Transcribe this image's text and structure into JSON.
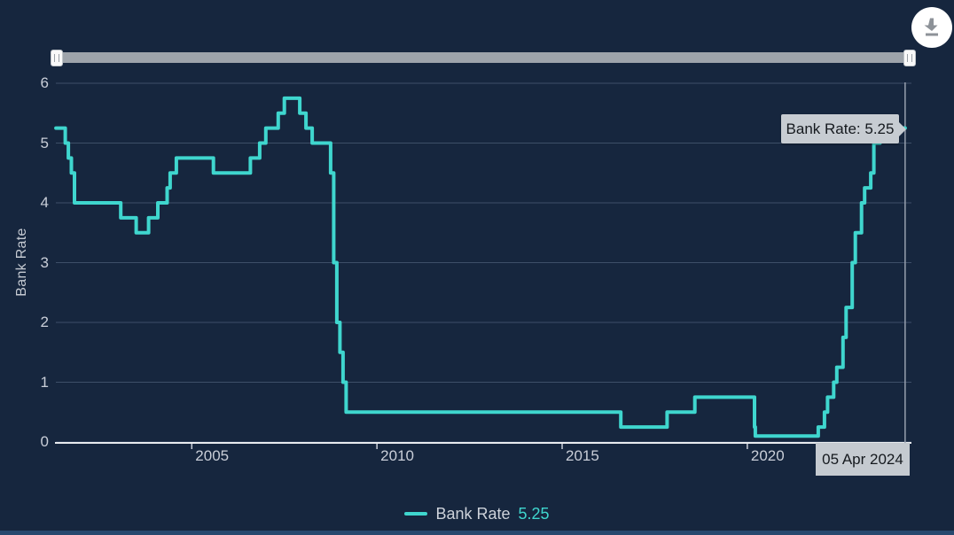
{
  "header": {
    "download_icon": "download-icon"
  },
  "colors": {
    "background": "#16263E",
    "accent_teal": "#3FD6CE",
    "grid": "#3E4F68",
    "axis_line": "#E8EBEF",
    "axis_text": "#C9CED8",
    "crosshair": "#97A0AE",
    "tooltip_bg": "#C7CCD2",
    "tooltip_text": "#15191E",
    "slider_track": "#9EA4AB",
    "slider_handle": "#F9F9F9"
  },
  "tooltip": {
    "label": "Bank Rate: 5.25"
  },
  "cursor": {
    "date_label": "05 Apr 2024"
  },
  "legend": {
    "name": "Bank Rate",
    "value": "5.25"
  },
  "chart_data": {
    "type": "line",
    "step": true,
    "title": "",
    "xlabel": "",
    "ylabel": "Bank Rate",
    "ylim": [
      0,
      6
    ],
    "y_ticks": [
      0,
      1,
      2,
      3,
      4,
      5,
      6
    ],
    "x_ticks": [
      2005,
      2010,
      2015,
      2020
    ],
    "x_range_decimal_years": [
      2001.33,
      2024.36
    ],
    "grid": "horizontal-only",
    "legend_position": "bottom-center",
    "cursor_date": "2024-04-05",
    "cursor_value": 5.25,
    "series": [
      {
        "name": "Bank Rate",
        "color": "#3FD6CE",
        "current_value": "5.25",
        "points": [
          [
            "2001-05",
            5.25
          ],
          [
            "2001-08",
            5.0
          ],
          [
            "2001-09",
            4.75
          ],
          [
            "2001-10",
            4.5
          ],
          [
            "2001-11",
            4.0
          ],
          [
            "2003-02",
            3.75
          ],
          [
            "2003-07",
            3.5
          ],
          [
            "2003-11",
            3.75
          ],
          [
            "2004-02",
            4.0
          ],
          [
            "2004-05",
            4.25
          ],
          [
            "2004-06",
            4.5
          ],
          [
            "2004-08",
            4.75
          ],
          [
            "2005-08",
            4.5
          ],
          [
            "2006-08",
            4.75
          ],
          [
            "2006-11",
            5.0
          ],
          [
            "2007-01",
            5.25
          ],
          [
            "2007-05",
            5.5
          ],
          [
            "2007-07",
            5.75
          ],
          [
            "2007-12",
            5.5
          ],
          [
            "2008-02",
            5.25
          ],
          [
            "2008-04",
            5.0
          ],
          [
            "2008-10",
            4.5
          ],
          [
            "2008-11",
            3.0
          ],
          [
            "2008-12",
            2.0
          ],
          [
            "2009-01",
            1.5
          ],
          [
            "2009-02",
            1.0
          ],
          [
            "2009-03",
            0.5
          ],
          [
            "2016-08",
            0.25
          ],
          [
            "2017-11",
            0.5
          ],
          [
            "2018-08",
            0.75
          ],
          [
            "2020-03-11",
            0.25
          ],
          [
            "2020-03-19",
            0.1
          ],
          [
            "2021-12",
            0.25
          ],
          [
            "2022-02",
            0.5
          ],
          [
            "2022-03",
            0.75
          ],
          [
            "2022-05",
            1.0
          ],
          [
            "2022-06",
            1.25
          ],
          [
            "2022-08",
            1.75
          ],
          [
            "2022-09",
            2.25
          ],
          [
            "2022-11",
            3.0
          ],
          [
            "2022-12",
            3.5
          ],
          [
            "2023-02",
            4.0
          ],
          [
            "2023-03",
            4.25
          ],
          [
            "2023-05",
            4.5
          ],
          [
            "2023-06",
            5.0
          ],
          [
            "2023-08",
            5.25
          ]
        ]
      }
    ]
  }
}
